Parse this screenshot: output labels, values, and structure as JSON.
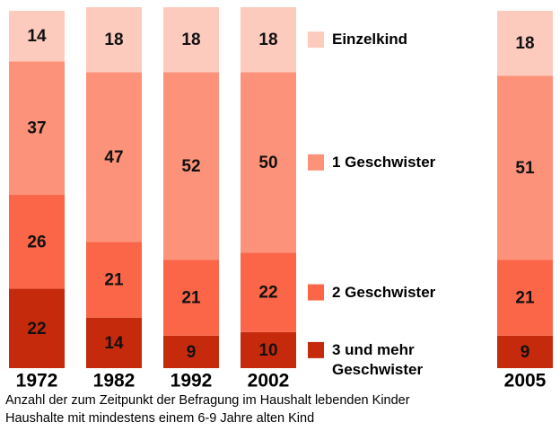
{
  "chart_data": {
    "type": "stacked-bar",
    "categories": [
      "1972",
      "1982",
      "1992",
      "2002",
      "2005"
    ],
    "series": [
      {
        "name": "3 und mehr Geschwister",
        "color": "#c52a0c",
        "values": [
          22,
          14,
          9,
          10,
          9
        ]
      },
      {
        "name": "2 Geschwister",
        "color": "#fb6548",
        "values": [
          26,
          21,
          21,
          22,
          21
        ]
      },
      {
        "name": "1 Geschwister",
        "color": "#fc9279",
        "values": [
          37,
          47,
          52,
          50,
          51
        ]
      },
      {
        "name": "Einzelkind",
        "color": "#fdcabe",
        "values": [
          14,
          18,
          18,
          18,
          18
        ]
      }
    ],
    "ylim": [
      0,
      100
    ],
    "notes": [
      "Anzahl der zum Zeitpunkt der Befragung im Haushalt lebenden Kinder",
      "Haushalte mit mindestens einem 6-9 Jahre alten Kind"
    ]
  }
}
